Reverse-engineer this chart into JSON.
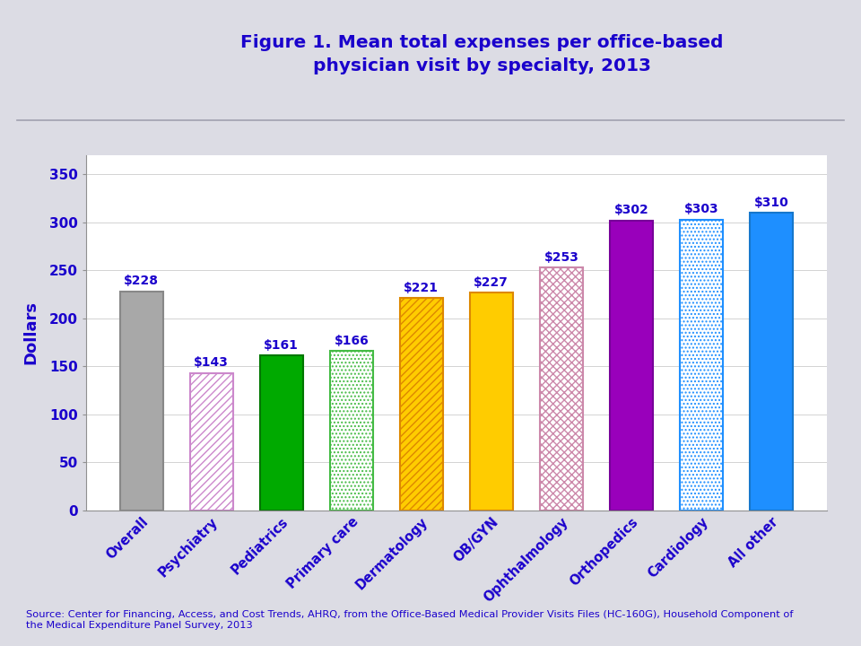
{
  "categories": [
    "Overall",
    "Psychiatry",
    "Pediatrics",
    "Primary care",
    "Dermatology",
    "OB/GYN",
    "Ophthalmology",
    "Orthopedics",
    "Cardiology",
    "All other"
  ],
  "values": [
    228,
    143,
    161,
    166,
    221,
    227,
    253,
    302,
    303,
    310
  ],
  "labels": [
    "$228",
    "$143",
    "$161",
    "$166",
    "$221",
    "$227",
    "$253",
    "$302",
    "$303",
    "$310"
  ],
  "title_line1": "Figure 1. Mean total expenses per office-based",
  "title_line2": "physician visit by specialty, 2013",
  "ylabel": "Dollars",
  "ylim": [
    0,
    370
  ],
  "yticks": [
    0,
    50,
    100,
    150,
    200,
    250,
    300,
    350
  ],
  "title_color": "#1a00cc",
  "axis_label_color": "#1a00cc",
  "tick_label_color": "#1a00cc",
  "bar_label_color": "#1a00cc",
  "source_text": "Source: Center for Financing, Access, and Cost Trends, AHRQ, from the Office-Based Medical Provider Visits Files (HC-160G), Household Component of\nthe Medical Expenditure Panel Survey, 2013",
  "bg_color": "#dcdce4",
  "plot_bg_color": "#ffffff",
  "header_separator_color": "#a0a0b0",
  "facecolors": [
    "#a8a8a8",
    "#ffffff",
    "#00aa00",
    "#ffffff",
    "#ffcc00",
    "#ffcc00",
    "#ffffff",
    "#9900bb",
    "#ffffff",
    "#1e8fff"
  ],
  "edgecolors": [
    "#888888",
    "#cc88cc",
    "#007700",
    "#44bb44",
    "#dd8800",
    "#dd8800",
    "#cc88aa",
    "#770099",
    "#1e8fff",
    "#1677cc"
  ],
  "hatch_patterns": [
    "",
    "////",
    "",
    "....",
    "////",
    "",
    "xxxx",
    "",
    "....",
    ""
  ],
  "hatch_colors": [
    "#888888",
    "#cc88cc",
    "#007700",
    "#44bb44",
    "#dd8800",
    "#dd8800",
    "#cc88aa",
    "#770099",
    "#1e8fff",
    "#1677cc"
  ]
}
